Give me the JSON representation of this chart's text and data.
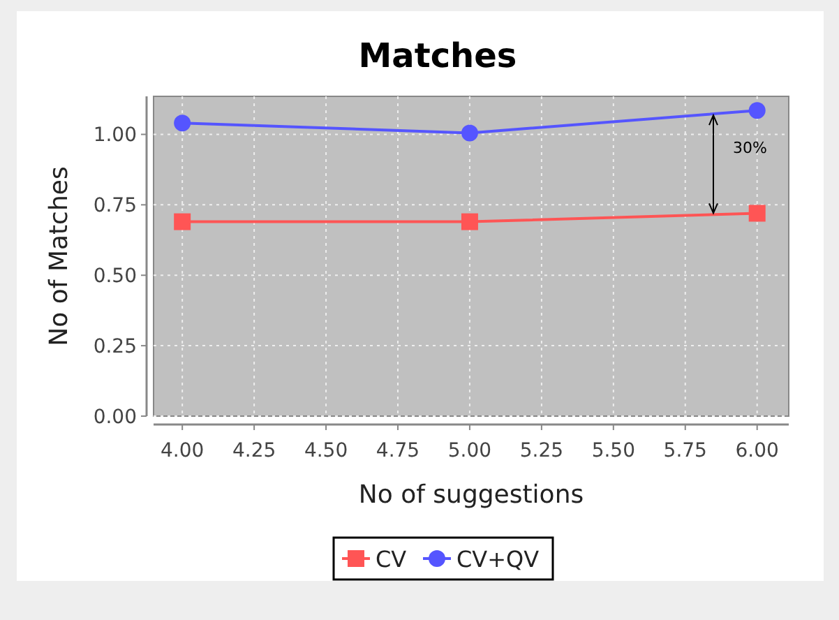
{
  "chart_data": {
    "type": "line",
    "title": "Matches",
    "xlabel": "No of suggestions",
    "ylabel": "No of Matches",
    "x": [
      4,
      5,
      6
    ],
    "series": [
      {
        "name": "CV",
        "color": "#ff5555",
        "values": [
          0.69,
          0.69,
          0.72
        ],
        "marker": "square"
      },
      {
        "name": "CV+QV",
        "color": "#5555ff",
        "values": [
          1.04,
          1.005,
          1.085
        ],
        "marker": "circle"
      }
    ],
    "xlim": [
      3.9,
      6.11
    ],
    "xticks": [
      {
        "value": 4,
        "label": "4.00"
      },
      {
        "value": 4.25,
        "label": "4.25"
      },
      {
        "value": 4.5,
        "label": "4.50"
      },
      {
        "value": 4.75,
        "label": "4.75"
      },
      {
        "value": 5,
        "label": "5.00"
      },
      {
        "value": 5.25,
        "label": "5.25"
      },
      {
        "value": 5.5,
        "label": "5.50"
      },
      {
        "value": 5.75,
        "label": "5.75"
      },
      {
        "value": 6,
        "label": "6.00"
      }
    ],
    "ylim": [
      0,
      1.135
    ],
    "yticks": [
      {
        "value": 0,
        "label": "0.00"
      },
      {
        "value": 0.25,
        "label": "0.25"
      },
      {
        "value": 0.5,
        "label": "0.50"
      },
      {
        "value": 0.75,
        "label": "0.75"
      },
      {
        "value": 1,
        "label": "1.00"
      }
    ],
    "grid": true,
    "legend": "bottom",
    "annotations": [
      "30%"
    ]
  }
}
